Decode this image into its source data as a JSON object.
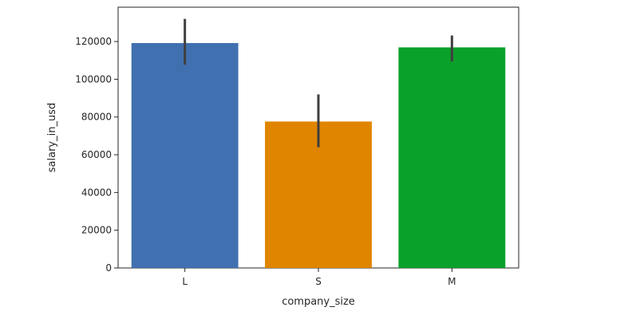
{
  "chart_data": {
    "type": "bar",
    "xlabel": "company_size",
    "ylabel": "salary_in_usd",
    "categories": [
      "L",
      "S",
      "M"
    ],
    "values": [
      119200,
      77600,
      116900
    ],
    "error_low": [
      107700,
      64000,
      109400
    ],
    "error_high": [
      132000,
      92000,
      123200
    ],
    "ylim": [
      0,
      138200
    ],
    "yticks": [
      0,
      20000,
      40000,
      60000,
      80000,
      100000,
      120000
    ],
    "ytick_labels": [
      "0",
      "20000",
      "40000",
      "60000",
      "80000",
      "100000",
      "120000"
    ],
    "colors": [
      "#4170b0",
      "#e08500",
      "#0aa12a"
    ],
    "error_color": "#3f3f3f",
    "grid": false,
    "legend": "none"
  }
}
